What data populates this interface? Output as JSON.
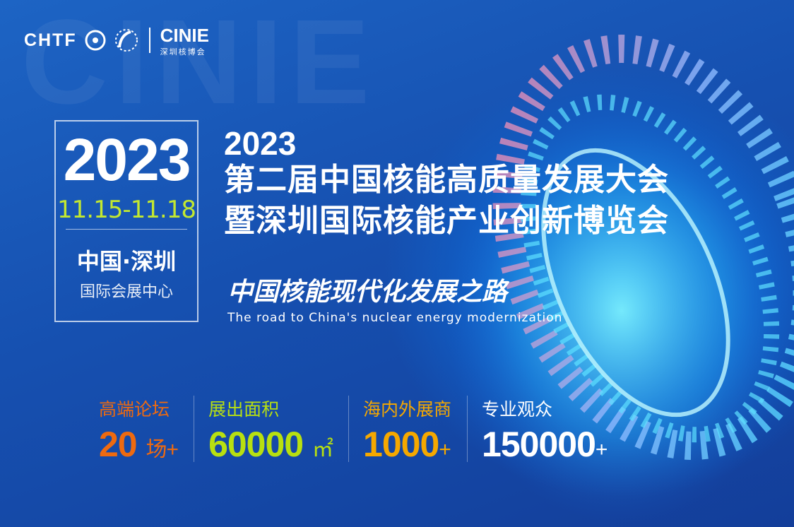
{
  "watermark": "CINIE",
  "logo": {
    "chtf": "CHTF",
    "cinie": "CINIE",
    "cinie_sub": "深圳核博会"
  },
  "datebox": {
    "year": "2023",
    "dates": "11.15-11.18",
    "city": "中国·深圳",
    "venue": "国际会展中心"
  },
  "title": {
    "year": "2023",
    "line1": "第二届中国核能高质量发展大会",
    "line2": "暨深圳国际核能产业创新博览会"
  },
  "slogan": {
    "zh": "中国核能现代化发展之路",
    "en": "The road to China's nuclear energy modernization"
  },
  "stats": [
    {
      "label": "高端论坛",
      "value": "20",
      "unit": "场+",
      "color": "#ee6a10"
    },
    {
      "label": "展出面积",
      "value": "60000",
      "unit": "㎡",
      "color": "#b8e010"
    },
    {
      "label": "海内外展商",
      "value": "1000",
      "unit": "+",
      "color": "#f5a800"
    },
    {
      "label": "专业观众",
      "value": "150000",
      "unit": "+",
      "color": "#ffffff"
    }
  ],
  "colors": {
    "bg": "#1650b0",
    "accent_green": "#c3e830"
  }
}
